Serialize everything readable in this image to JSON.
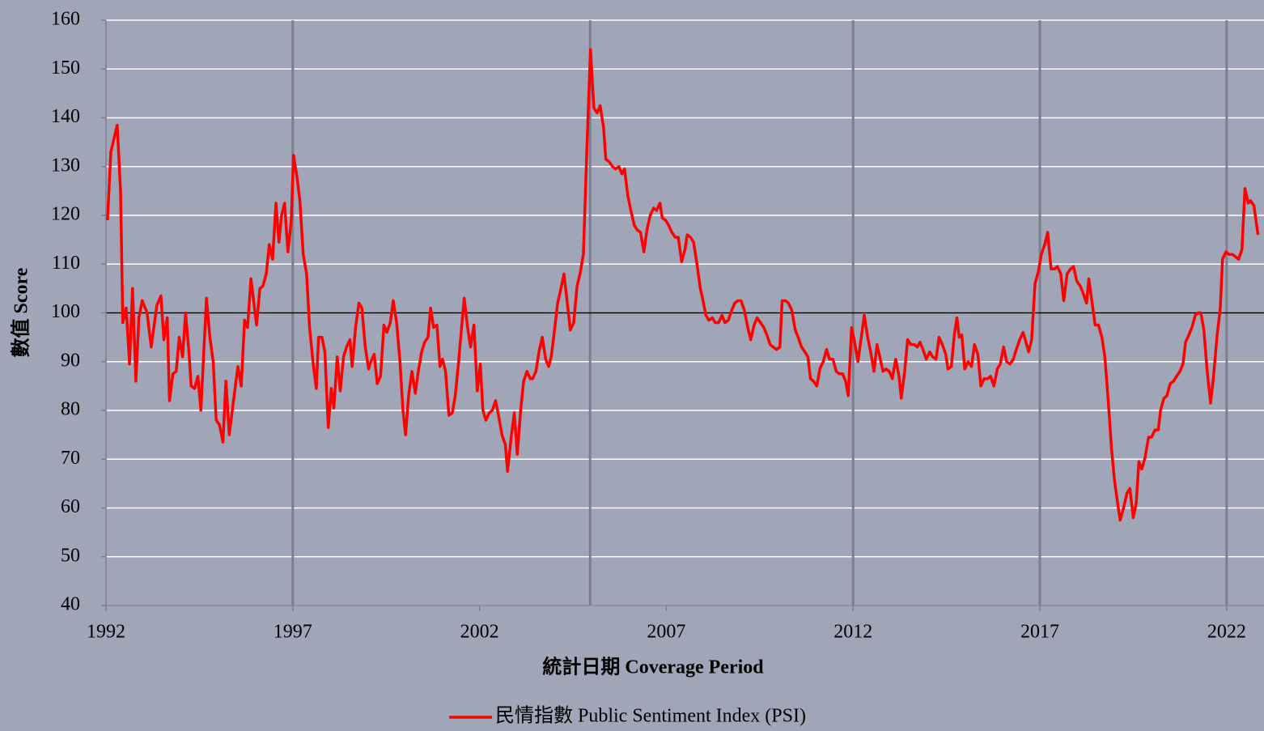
{
  "chart_data": {
    "type": "line",
    "x_label": "統計日期 Coverage Period",
    "y_label": "數值 Score",
    "xlim": [
      1992,
      2023
    ],
    "xticks": [
      1992,
      1997,
      2002,
      2007,
      2012,
      2017,
      2022
    ],
    "ylim": [
      40,
      160
    ],
    "yticks": [
      40,
      50,
      60,
      70,
      80,
      90,
      100,
      110,
      120,
      130,
      140,
      150,
      160
    ],
    "grid": true,
    "reference_y": 100,
    "reference_x": [
      1997,
      2004.96,
      2012,
      2017,
      2022
    ],
    "legend": "bottom",
    "x": [
      1992.04,
      1992.13,
      1992.3,
      1992.39,
      1992.45,
      1992.54,
      1992.63,
      1992.71,
      1992.8,
      1992.88,
      1992.97,
      1993.1,
      1993.21,
      1993.36,
      1993.47,
      1993.55,
      1993.64,
      1993.7,
      1993.79,
      1993.88,
      1993.96,
      1994.05,
      1994.13,
      1994.22,
      1994.28,
      1994.37,
      1994.46,
      1994.54,
      1994.69,
      1994.78,
      1994.87,
      1994.95,
      1995.04,
      1995.13,
      1995.21,
      1995.3,
      1995.38,
      1995.53,
      1995.62,
      1995.71,
      1995.79,
      1995.88,
      1996.03,
      1996.12,
      1996.2,
      1996.29,
      1996.37,
      1996.46,
      1996.55,
      1996.63,
      1996.7,
      1996.78,
      1996.87,
      1996.96,
      1997.02,
      1997.11,
      1997.19,
      1997.28,
      1997.37,
      1997.45,
      1997.54,
      1997.63,
      1997.69,
      1997.78,
      1997.86,
      1997.95,
      1998.03,
      1998.1,
      1998.19,
      1998.27,
      1998.36,
      1998.44,
      1998.53,
      1998.59,
      1998.68,
      1998.77,
      1998.85,
      1998.94,
      1999.03,
      1999.09,
      1999.18,
      1999.26,
      1999.35,
      1999.44,
      1999.52,
      1999.61,
      1999.69,
      1999.78,
      1999.87,
      1999.95,
      2000.02,
      2000.1,
      2000.19,
      2000.28,
      2000.36,
      2000.45,
      2000.53,
      2000.62,
      2000.69,
      2000.77,
      2000.86,
      2000.94,
      2001.01,
      2001.09,
      2001.18,
      2001.27,
      2001.35,
      2001.44,
      2001.53,
      2001.59,
      2001.68,
      2001.76,
      2001.85,
      2001.94,
      2002.02,
      2002.09,
      2002.17,
      2002.26,
      2002.34,
      2002.43,
      2002.52,
      2002.6,
      2002.69,
      2002.75,
      2002.84,
      2002.93,
      2003.01,
      2003.1,
      2003.18,
      2003.27,
      2003.36,
      2003.42,
      2003.51,
      2003.59,
      2003.68,
      2003.77,
      2003.85,
      2003.92,
      2004.0,
      2004.09,
      2004.18,
      2004.26,
      2004.35,
      2004.43,
      2004.52,
      2004.61,
      2004.69,
      2004.78,
      2004.87,
      2004.97,
      2005.06,
      2005.15,
      2005.23,
      2005.32,
      2005.38,
      2005.47,
      2005.56,
      2005.64,
      2005.73,
      2005.81,
      2005.88,
      2005.97,
      2006.05,
      2006.14,
      2006.22,
      2006.31,
      2006.4,
      2006.48,
      2006.57,
      2006.66,
      2006.74,
      2006.83,
      2006.89,
      2006.98,
      2007.06,
      2007.15,
      2007.24,
      2007.32,
      2007.41,
      2007.5,
      2007.56,
      2007.65,
      2007.73,
      2007.82,
      2007.91,
      2007.97,
      2008.06,
      2008.14,
      2008.23,
      2008.31,
      2008.4,
      2008.49,
      2008.57,
      2008.66,
      2008.75,
      2008.83,
      2008.92,
      2009.0,
      2009.09,
      2009.18,
      2009.26,
      2009.35,
      2009.43,
      2009.52,
      2009.61,
      2009.69,
      2009.78,
      2009.86,
      2009.95,
      2010.04,
      2010.1,
      2010.19,
      2010.27,
      2010.36,
      2010.45,
      2010.53,
      2010.62,
      2010.71,
      2010.79,
      2010.86,
      2010.94,
      2011.03,
      2011.11,
      2011.2,
      2011.29,
      2011.37,
      2011.46,
      2011.55,
      2011.63,
      2011.72,
      2011.8,
      2011.87,
      2011.96,
      2012.04,
      2012.13,
      2012.21,
      2012.3,
      2012.39,
      2012.47,
      2012.56,
      2012.64,
      2012.73,
      2012.8,
      2012.88,
      2012.97,
      2013.05,
      2013.14,
      2013.23,
      2013.29,
      2013.38,
      2013.46,
      2013.55,
      2013.64,
      2013.72,
      2013.79,
      2013.87,
      2013.96,
      2014.05,
      2014.13,
      2014.22,
      2014.3,
      2014.39,
      2014.48,
      2014.54,
      2014.63,
      2014.71,
      2014.78,
      2014.84,
      2014.91,
      2014.99,
      2015.08,
      2015.17,
      2015.25,
      2015.34,
      2015.42,
      2015.51,
      2015.6,
      2015.68,
      2015.77,
      2015.86,
      2015.94,
      2016.03,
      2016.11,
      2016.2,
      2016.29,
      2016.37,
      2016.46,
      2016.55,
      2016.61,
      2016.7,
      2016.78,
      2016.87,
      2016.96,
      2017.04,
      2017.13,
      2017.21,
      2017.3,
      2017.39,
      2017.47,
      2017.56,
      2017.64,
      2017.73,
      2017.82,
      2017.9,
      2017.99,
      2018.08,
      2018.16,
      2018.25,
      2018.31,
      2018.4,
      2018.48,
      2018.57,
      2018.66,
      2018.74,
      2018.83,
      2018.92,
      2019.0,
      2019.09,
      2019.15,
      2019.24,
      2019.33,
      2019.41,
      2019.5,
      2019.58,
      2019.65,
      2019.73,
      2019.82,
      2019.91,
      2019.99,
      2020.08,
      2020.17,
      2020.23,
      2020.32,
      2020.4,
      2020.49,
      2020.58,
      2020.66,
      2020.75,
      2020.83,
      2020.9,
      2020.99,
      2021.07,
      2021.16,
      2021.24,
      2021.31,
      2021.39,
      2021.48,
      2021.57,
      2021.65,
      2021.74,
      2021.83,
      2021.89,
      2021.98,
      2022.06,
      2022.15,
      2022.24,
      2022.32,
      2022.41,
      2022.49,
      2022.58,
      2022.64,
      2022.73,
      2022.84
    ],
    "series": [
      {
        "name": "民情指數 Public Sentiment Index (PSI)",
        "color": "#ff0000",
        "values": [
          119,
          133,
          138.5,
          125,
          98,
          101,
          89.5,
          105,
          86,
          99,
          102.5,
          100,
          93,
          101.5,
          103.5,
          94.5,
          99,
          82,
          87.5,
          88,
          95,
          91,
          100,
          92,
          85,
          84.5,
          87,
          80,
          103,
          95,
          90,
          78,
          77,
          73.5,
          86,
          75,
          80,
          89,
          85,
          98.5,
          97,
          107,
          97.5,
          105,
          105.5,
          108,
          114,
          111,
          122.5,
          114.5,
          120,
          122.5,
          112.5,
          119,
          132.3,
          128,
          123,
          112,
          108,
          97,
          90,
          84.5,
          95,
          95,
          92,
          76.5,
          84.5,
          80.5,
          91,
          84,
          91,
          93,
          94.5,
          89,
          97,
          102,
          101,
          93,
          88.5,
          90,
          91.5,
          85.5,
          87,
          97.5,
          96,
          98,
          102.5,
          98,
          90,
          80,
          75,
          83,
          88,
          83.5,
          88,
          92,
          94,
          95,
          101,
          97,
          97.5,
          89,
          90.5,
          88,
          79,
          79.5,
          83,
          90,
          98,
          103,
          97,
          93,
          97.5,
          84,
          89.5,
          80,
          78,
          79.5,
          80,
          82,
          78.5,
          75,
          73,
          67.5,
          74,
          79.5,
          71,
          80,
          86,
          88,
          86.5,
          86.5,
          88,
          92,
          95,
          90.5,
          89,
          91,
          96,
          102,
          105,
          108,
          102,
          96.5,
          98,
          105.5,
          108,
          112,
          133,
          154,
          142,
          141,
          142.5,
          138,
          131.5,
          131,
          130,
          129.5,
          130,
          128.5,
          129.5,
          124,
          121,
          118,
          117,
          116.5,
          112.5,
          117,
          120,
          121.5,
          121,
          122.5,
          119.5,
          119,
          118,
          116.5,
          115.5,
          115.5,
          110.5,
          113,
          116,
          115.5,
          114.5,
          110,
          105,
          103,
          99.5,
          98.5,
          99,
          98,
          98,
          99.5,
          98,
          98.5,
          100.5,
          102,
          102.5,
          102.5,
          100.5,
          97,
          94.5,
          97.5,
          99,
          98,
          97,
          95.5,
          93.5,
          93,
          92.5,
          93,
          102.5,
          102.5,
          102,
          100.5,
          96.5,
          95,
          93,
          92,
          91,
          86.5,
          86,
          85,
          88.5,
          90,
          92.5,
          90.5,
          90.5,
          88,
          87.5,
          87.5,
          86,
          83,
          97,
          94,
          90,
          94.5,
          99.5,
          95,
          92,
          88,
          93.5,
          90.5,
          88,
          88.5,
          88,
          86.5,
          90.5,
          87,
          82.5,
          88,
          94.5,
          93.5,
          93.5,
          93,
          94,
          92.5,
          90.5,
          92,
          91,
          90.5,
          95,
          93.5,
          91.5,
          88.5,
          89,
          95.5,
          99,
          95,
          95.5,
          88.5,
          90,
          89,
          93.5,
          91.5,
          85,
          86.5,
          86.5,
          87,
          85,
          88.5,
          89.5,
          93,
          90,
          89.5,
          90.5,
          92.5,
          94.5,
          96,
          94.5,
          92,
          94.5,
          106,
          108.5,
          112,
          114,
          116.5,
          109,
          109,
          109.5,
          108,
          102.5,
          108,
          109,
          109.5,
          106.5,
          105.5,
          104,
          102,
          107,
          102,
          97.5,
          97.5,
          95,
          91,
          82,
          72,
          65.5,
          60.5,
          57.5,
          60,
          63,
          64,
          58,
          61,
          69.5,
          68,
          70.5,
          74.5,
          74.5,
          76,
          76,
          80,
          82.5,
          83,
          85.5,
          86,
          87,
          88,
          89.5,
          94,
          95.5,
          97,
          99.5,
          100,
          100,
          96.5,
          88,
          81.5,
          87,
          95,
          101,
          111,
          112.5,
          112,
          112,
          111.5,
          111,
          113,
          125.5,
          122.5,
          123,
          122,
          116
        ]
      }
    ]
  }
}
